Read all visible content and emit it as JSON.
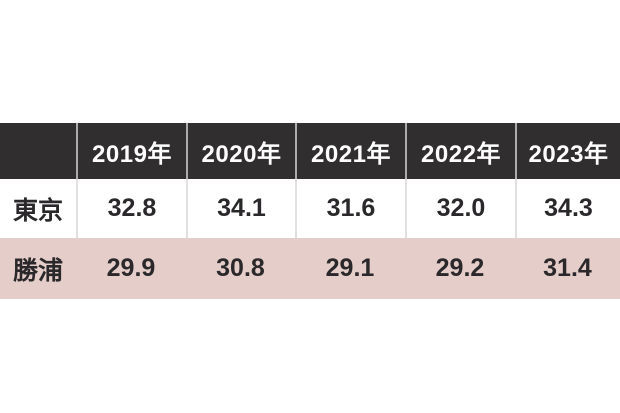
{
  "table": {
    "header": [
      "",
      "2019年",
      "2020年",
      "2021年",
      "2022年",
      "2023年"
    ],
    "rows": [
      {
        "label": "東京",
        "values": [
          "32.8",
          "34.1",
          "31.6",
          "32.0",
          "34.3"
        ]
      },
      {
        "label": "勝浦",
        "values": [
          "29.9",
          "30.8",
          "29.1",
          "29.2",
          "31.4"
        ]
      }
    ]
  },
  "chart_data": {
    "type": "table",
    "categories": [
      "2019年",
      "2020年",
      "2021年",
      "2022年",
      "2023年"
    ],
    "series": [
      {
        "name": "東京",
        "values": [
          32.8,
          34.1,
          31.6,
          32.0,
          34.3
        ]
      },
      {
        "name": "勝浦",
        "values": [
          29.9,
          30.8,
          29.1,
          29.2,
          31.4
        ]
      }
    ],
    "title": "",
    "legend_position": "none",
    "grid": false
  },
  "colors": {
    "header_bg": "#302e2f",
    "header_text": "#ffffff",
    "row_tokyo_bg": "#ffffff",
    "row_katsuura_bg": "#e5cdc9",
    "body_text": "#2a282a",
    "header_divider": "#aeabab",
    "body_divider": "#e2dfdf",
    "page_bg": "#ffffff"
  }
}
